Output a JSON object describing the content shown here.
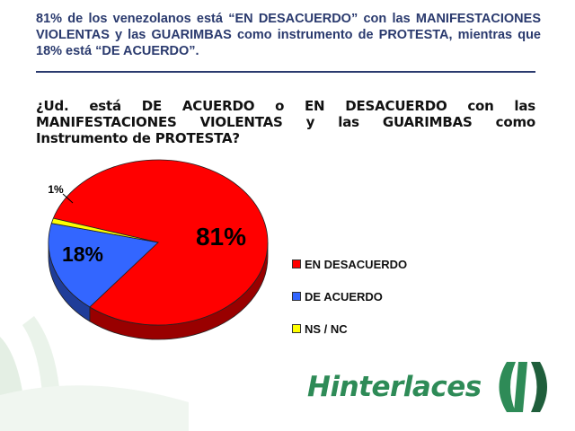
{
  "headline": "81% de los venezolanos está “EN DESACUERDO” con las MANIFESTACIONES VIOLENTAS y las GUARIMBAS como instrumento de PROTESTA, mientras que 18% está “DE ACUERDO”.",
  "question": "¿Ud. está DE ACUERDO o EN DESACUERDO con las MANIFESTACIONES VIOLENTAS y las GUARIMBAS como Instrumento de PROTESTA?",
  "logo_text": "Hinterlaces",
  "chart_data": {
    "type": "pie",
    "categories": [
      "EN DESACUERDO",
      "DE ACUERDO",
      "NS / NC"
    ],
    "values": [
      81,
      18,
      1
    ],
    "value_labels": [
      "81%",
      "18%",
      "1%"
    ],
    "colors": [
      "#ff0000",
      "#3366ff",
      "#ffff00"
    ],
    "legend": "right",
    "style": "3d"
  }
}
